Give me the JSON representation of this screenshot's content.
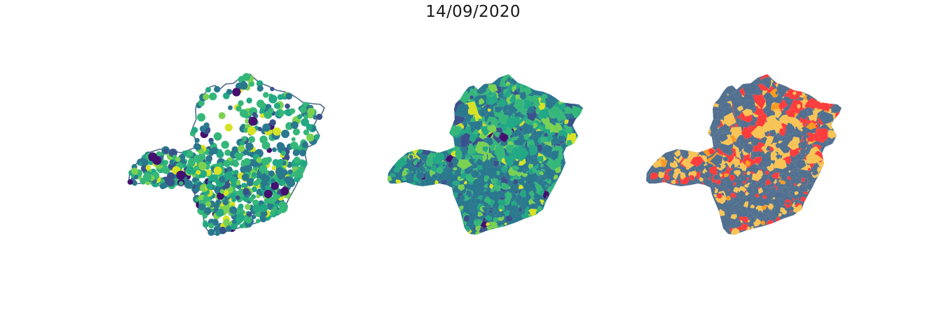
{
  "title": "14/09/2020",
  "panels": [
    {
      "id": "points",
      "kind": "scatter-bubbles-over-outline",
      "outline_color": "#4e6a8c"
    },
    {
      "id": "choropleth-viridis",
      "kind": "choropleth",
      "palette": [
        "#440f6e",
        "#3a528b",
        "#2a788e",
        "#22a884",
        "#35b779",
        "#7ad151",
        "#d6e225"
      ]
    },
    {
      "id": "choropleth-categorical",
      "kind": "choropleth",
      "palette": [
        "#52708f",
        "#f8c455",
        "#fb3d3d",
        "#f89c22"
      ]
    }
  ],
  "colors": {
    "viridis_dark": "#440f6e",
    "viridis_blue": "#2a788e",
    "viridis_green": "#35b779",
    "viridis_yellow": "#d6e225",
    "category_slate": "#52708f",
    "category_yellow": "#f8c455",
    "category_red": "#fb3d3d",
    "category_orange": "#f89c22"
  }
}
